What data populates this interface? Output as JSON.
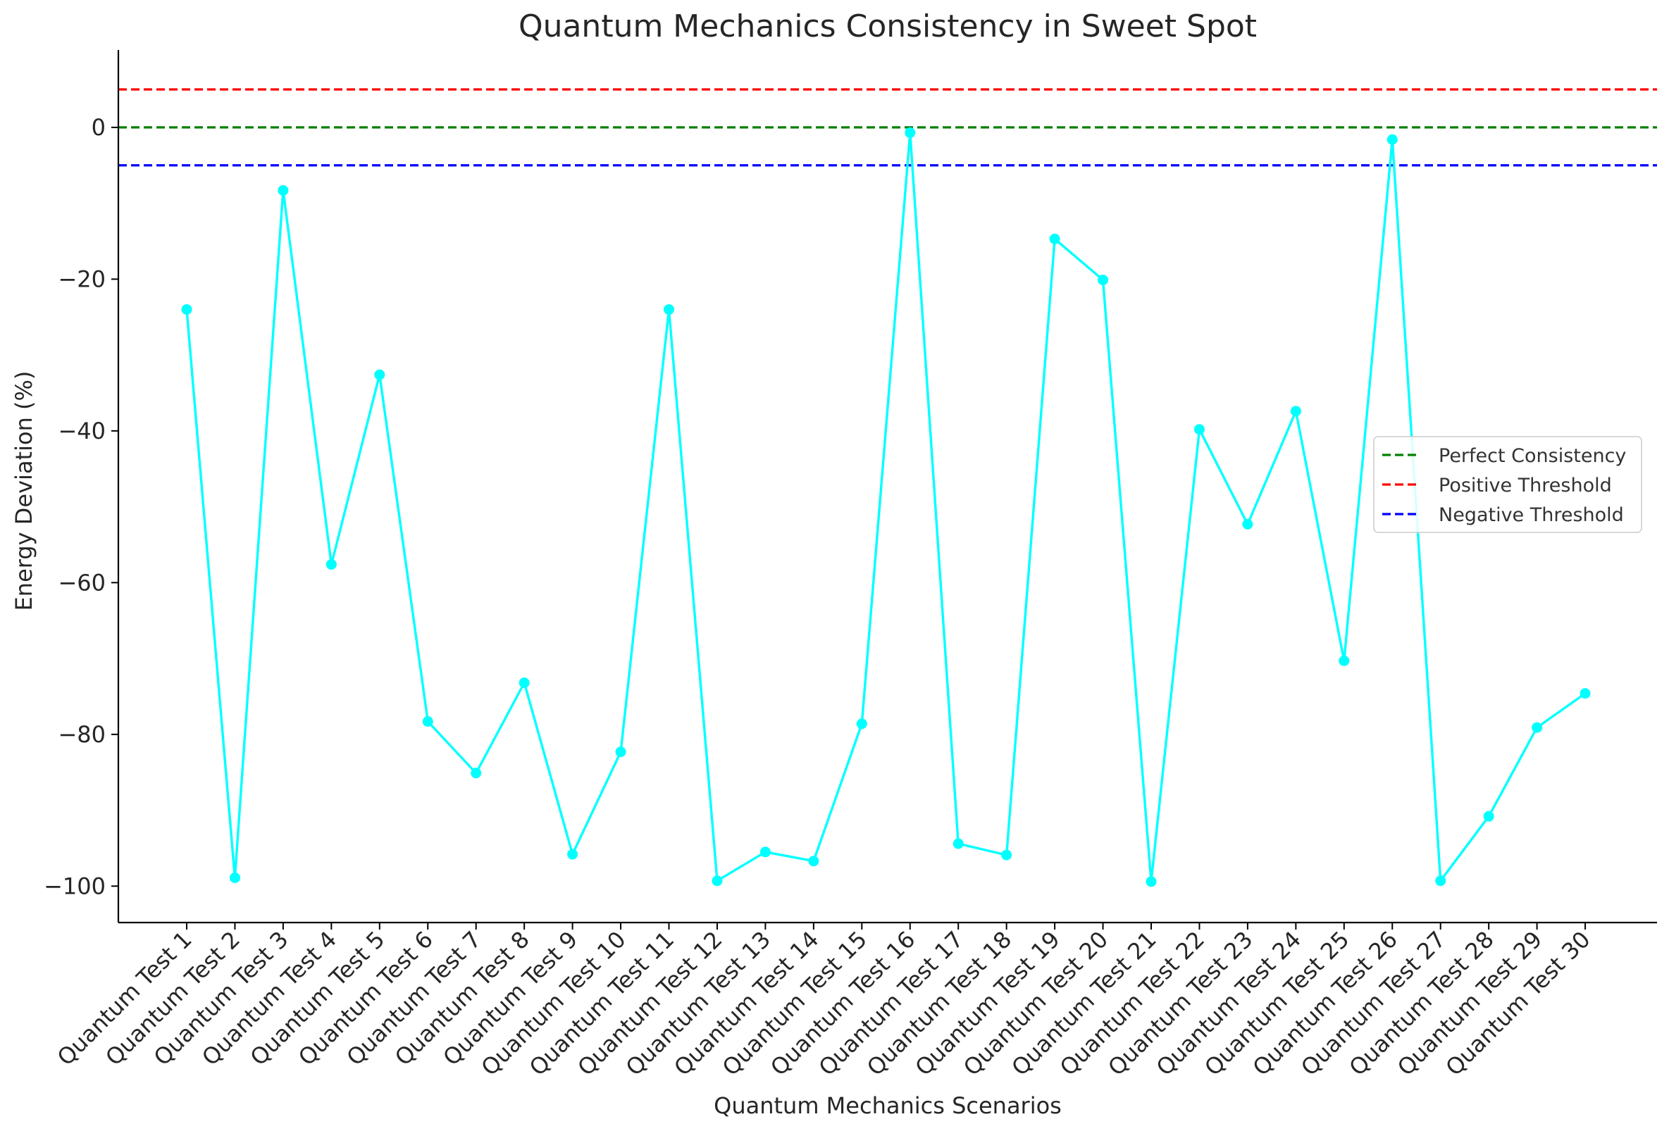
{
  "chart_data": {
    "type": "line",
    "title": "Quantum Mechanics Consistency in Sweet Spot",
    "xlabel": "Quantum Mechanics Scenarios",
    "ylabel": "Energy Deviation (%)",
    "ylim": [
      -104.8,
      10.2
    ],
    "yticks": [
      0,
      -20,
      -40,
      -60,
      -80,
      -100
    ],
    "ytick_labels": [
      "0",
      "−20",
      "−40",
      "−60",
      "−80",
      "−100"
    ],
    "grid": false,
    "legend_position": "center-right",
    "categories": [
      "Quantum Test 1",
      "Quantum Test 2",
      "Quantum Test 3",
      "Quantum Test 4",
      "Quantum Test 5",
      "Quantum Test 6",
      "Quantum Test 7",
      "Quantum Test 8",
      "Quantum Test 9",
      "Quantum Test 10",
      "Quantum Test 11",
      "Quantum Test 12",
      "Quantum Test 13",
      "Quantum Test 14",
      "Quantum Test 15",
      "Quantum Test 16",
      "Quantum Test 17",
      "Quantum Test 18",
      "Quantum Test 19",
      "Quantum Test 20",
      "Quantum Test 21",
      "Quantum Test 22",
      "Quantum Test 23",
      "Quantum Test 24",
      "Quantum Test 25",
      "Quantum Test 26",
      "Quantum Test 27",
      "Quantum Test 28",
      "Quantum Test 29",
      "Quantum Test 30"
    ],
    "series": [
      {
        "color": "#00ffff",
        "values": [
          -24.0,
          -98.9,
          -8.3,
          -57.6,
          -32.6,
          -78.3,
          -85.1,
          -73.2,
          -95.8,
          -82.3,
          -24.0,
          -99.3,
          -95.5,
          -96.7,
          -78.6,
          -0.7,
          -94.4,
          -95.9,
          -14.7,
          -20.1,
          -99.4,
          -39.8,
          -52.3,
          -37.4,
          -70.3,
          -1.6,
          -99.3,
          -90.8,
          -79.1,
          -74.6
        ]
      }
    ],
    "reference_lines": [
      {
        "name": "Perfect Consistency",
        "y": 0,
        "color": "#008000",
        "style": "dashed"
      },
      {
        "name": "Positive Threshold",
        "y": 5,
        "color": "#ff0000",
        "style": "dashed"
      },
      {
        "name": "Negative Threshold",
        "y": -5,
        "color": "#0000ff",
        "style": "dashed"
      }
    ]
  }
}
